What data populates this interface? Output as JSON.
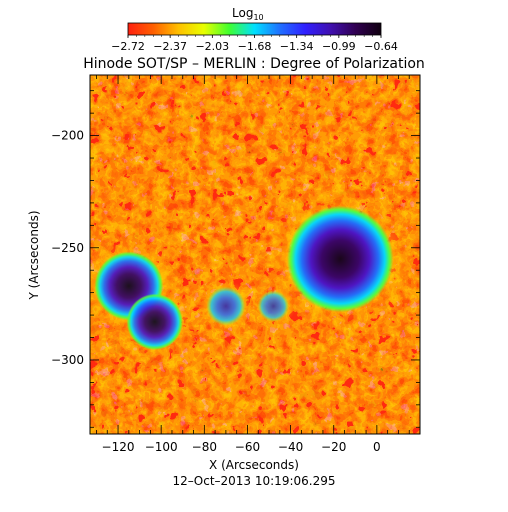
{
  "colorbar": {
    "label_base": "Log",
    "label_sub": "10",
    "ticks": [
      "−2.72",
      "−2.37",
      "−2.03",
      "−1.68",
      "−1.34",
      "−0.99",
      "−0.64"
    ],
    "colors": [
      "#ff2010",
      "#ff6000",
      "#ffc000",
      "#e8ff00",
      "#40ff30",
      "#00e0ff",
      "#2070ff",
      "#3020ff",
      "#4010b0",
      "#300050",
      "#100010"
    ]
  },
  "title": "Hinode SOT/SP – MERLIN : Degree of Polarization",
  "timestamp": "12–Oct–2013 10:19:06.295",
  "chart_data": {
    "type": "heatmap",
    "title": "Hinode SOT/SP – MERLIN : Degree of Polarization",
    "xlabel": "X (Arcseconds)",
    "ylabel": "Y (Arcseconds)",
    "xlim": [
      -133,
      20
    ],
    "ylim": [
      -333,
      -173
    ],
    "xticks": [
      {
        "value": -120,
        "label": "−120"
      },
      {
        "value": -100,
        "label": "−100"
      },
      {
        "value": -80,
        "label": "−80"
      },
      {
        "value": -60,
        "label": "−60"
      },
      {
        "value": -40,
        "label": "−40"
      },
      {
        "value": -20,
        "label": "−20"
      },
      {
        "value": 0,
        "label": "0"
      }
    ],
    "yticks": [
      {
        "value": -200,
        "label": "−200"
      },
      {
        "value": -250,
        "label": "−250"
      },
      {
        "value": -300,
        "label": "−300"
      }
    ],
    "color_scale": "log10",
    "value_range": [
      -2.72,
      -0.64
    ],
    "features": [
      {
        "name": "sunspot",
        "x": -17,
        "y": -255,
        "radius": 17,
        "level": 0.97
      },
      {
        "name": "sunspot",
        "x": -115,
        "y": -267,
        "radius": 11,
        "level": 0.92
      },
      {
        "name": "sunspot",
        "x": -103,
        "y": -283,
        "radius": 9,
        "level": 0.9
      },
      {
        "name": "pore",
        "x": -70,
        "y": -276,
        "radius": 5,
        "level": 0.8
      },
      {
        "name": "pore",
        "x": -48,
        "y": -276,
        "radius": 4,
        "level": 0.72
      }
    ]
  }
}
